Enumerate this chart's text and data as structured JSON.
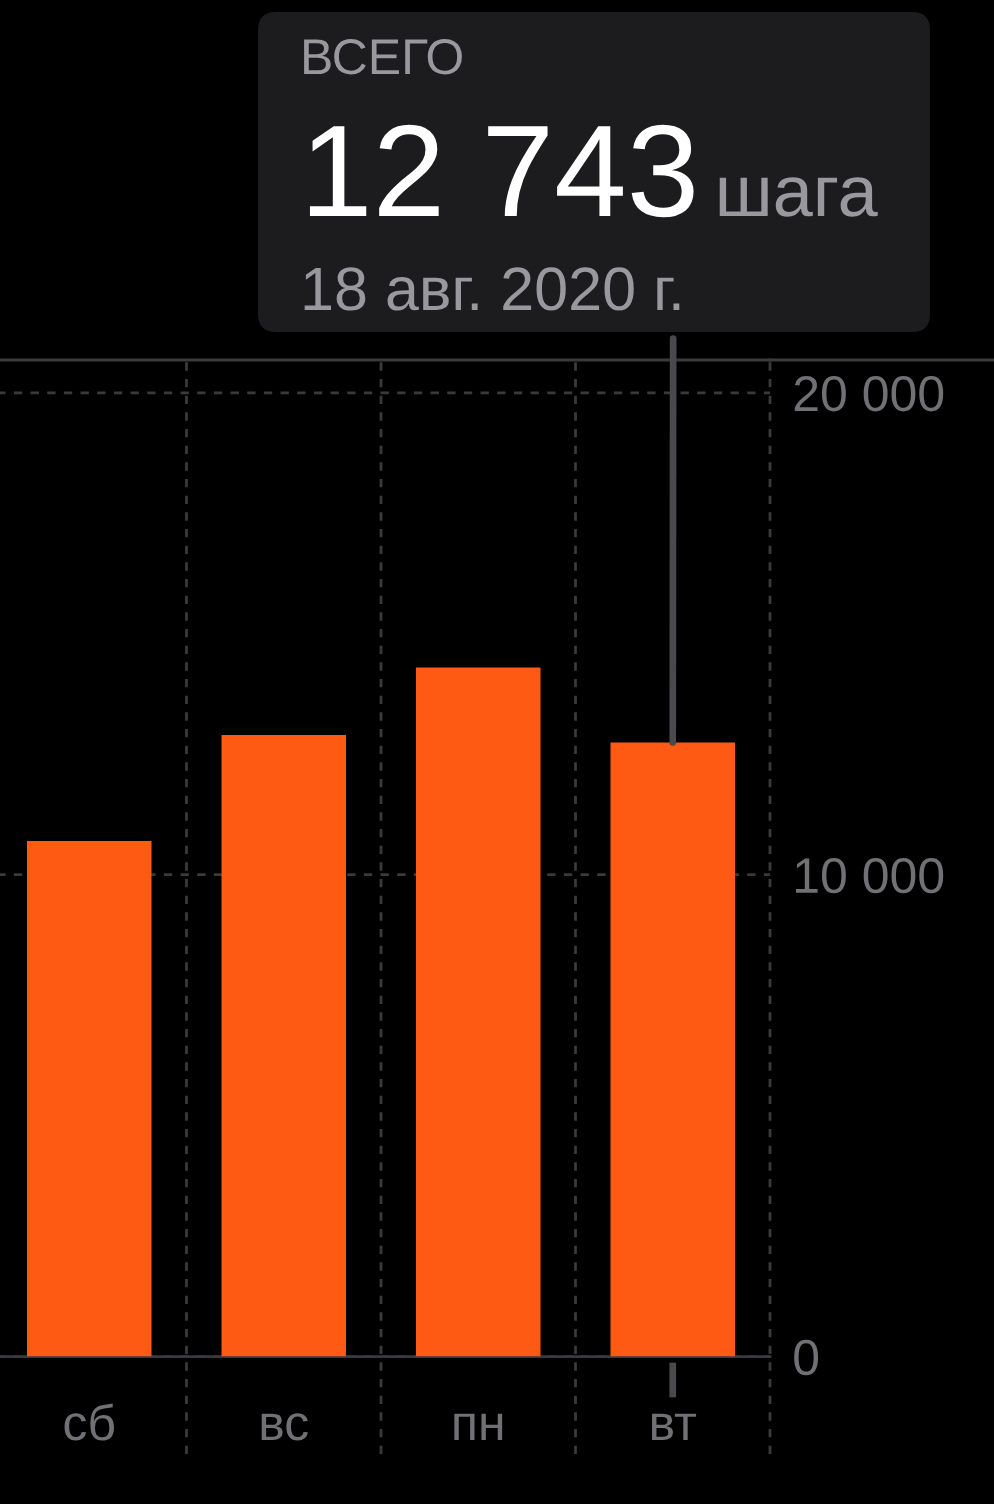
{
  "chart_data": {
    "type": "bar",
    "categories": [
      "сб",
      "вс",
      "пн",
      "вт"
    ],
    "values": [
      10700,
      12900,
      14300,
      12743
    ],
    "color": "#ff5a14",
    "ylim": [
      0,
      20680
    ],
    "yticks": [
      0,
      {
        "value": 10000,
        "label": "10 000"
      },
      {
        "value": 20000,
        "label": "20 000"
      }
    ],
    "grid": true,
    "annotations": [
      "ВСЕГО",
      {
        "text": "12 743",
        "x": "вт",
        "y": 12743
      },
      "шага",
      "18 авг. 2020 г."
    ]
  }
}
